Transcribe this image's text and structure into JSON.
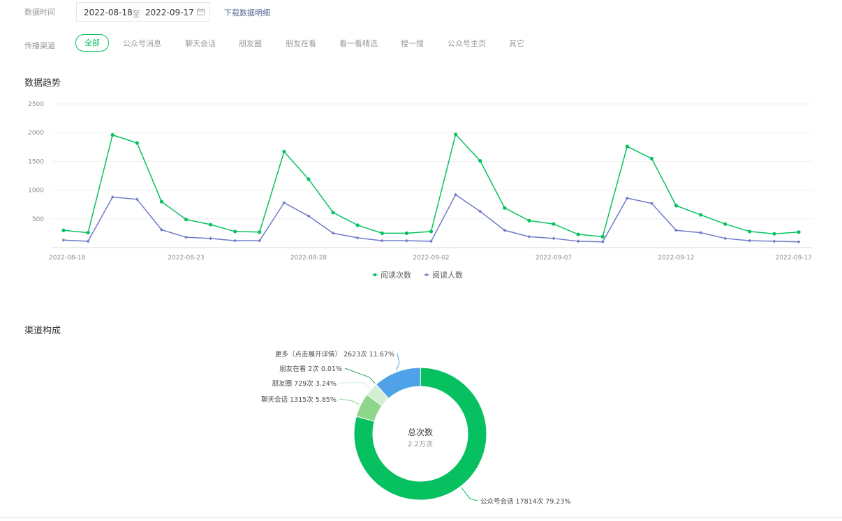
{
  "filters": {
    "date_label": "数据时间",
    "date_start": "2022-08-18",
    "date_sep": "至",
    "date_end": "2022-09-17",
    "download_label": "下载数据明细",
    "channel_label": "传播渠道",
    "channels": [
      "全部",
      "公众号消息",
      "聊天会话",
      "朋友圈",
      "朋友在看",
      "看一看精选",
      "搜一搜",
      "公众号主页",
      "其它"
    ],
    "active_channel": "全部"
  },
  "trend": {
    "title": "数据趋势"
  },
  "composition": {
    "title": "渠道构成",
    "center_title": "总次数",
    "center_value": "2.2万次"
  },
  "chart_data": [
    {
      "type": "line",
      "title": "",
      "xlabel": "",
      "ylabel": "",
      "ylim": [
        0,
        2500
      ],
      "yticks": [
        500,
        1000,
        1500,
        2000,
        2500
      ],
      "grid": true,
      "legend_position": "bottom-center",
      "x_tick_labels": [
        "2022-08-18",
        "2022-08-23",
        "2022-08-28",
        "2022-09-02",
        "2022-09-07",
        "2022-09-12",
        "2022-09-17"
      ],
      "x": [
        "2022-08-18",
        "2022-08-19",
        "2022-08-20",
        "2022-08-21",
        "2022-08-22",
        "2022-08-23",
        "2022-08-24",
        "2022-08-25",
        "2022-08-26",
        "2022-08-27",
        "2022-08-28",
        "2022-08-29",
        "2022-08-30",
        "2022-08-31",
        "2022-09-01",
        "2022-09-02",
        "2022-09-03",
        "2022-09-04",
        "2022-09-05",
        "2022-09-06",
        "2022-09-07",
        "2022-09-08",
        "2022-09-09",
        "2022-09-10",
        "2022-09-11",
        "2022-09-12",
        "2022-09-13",
        "2022-09-14",
        "2022-09-15",
        "2022-09-16",
        "2022-09-17"
      ],
      "series": [
        {
          "name": "阅读次数",
          "color": "#07c160",
          "values": [
            300,
            260,
            1960,
            1820,
            800,
            490,
            400,
            280,
            270,
            1670,
            1190,
            610,
            390,
            250,
            250,
            280,
            1970,
            1510,
            690,
            470,
            410,
            230,
            190,
            1760,
            1550,
            730,
            570,
            410,
            280,
            240,
            270
          ]
        },
        {
          "name": "阅读人数",
          "color": "#6f7ac9",
          "values": [
            130,
            110,
            880,
            840,
            310,
            180,
            160,
            120,
            120,
            780,
            550,
            250,
            170,
            120,
            120,
            110,
            920,
            630,
            300,
            190,
            160,
            110,
            100,
            860,
            770,
            300,
            260,
            160,
            120,
            110,
            100
          ]
        }
      ]
    },
    {
      "type": "pie",
      "title": "",
      "legend_position": "bottom",
      "series": [
        {
          "name": "公众号会话",
          "value": 17814,
          "label": "公众号会话 17814次 79.23%",
          "color": "#07c160"
        },
        {
          "name": "聊天会话",
          "value": 1315,
          "label": "聊天会话 1315次 5.85%",
          "color": "#8ed68c"
        },
        {
          "name": "朋友圈",
          "value": 729,
          "label": "朋友圈 729次 3.24%",
          "color": "#d3efd3"
        },
        {
          "name": "朋友在看",
          "value": 2,
          "label": "朋友在看 2次 0.01%",
          "color": "#2e9b5a"
        },
        {
          "name": "更多（点击展开详情）",
          "value": 2623,
          "label": "更多（点击展开详情） 2623次 11.67%",
          "color": "#4fa2e8"
        }
      ]
    }
  ]
}
